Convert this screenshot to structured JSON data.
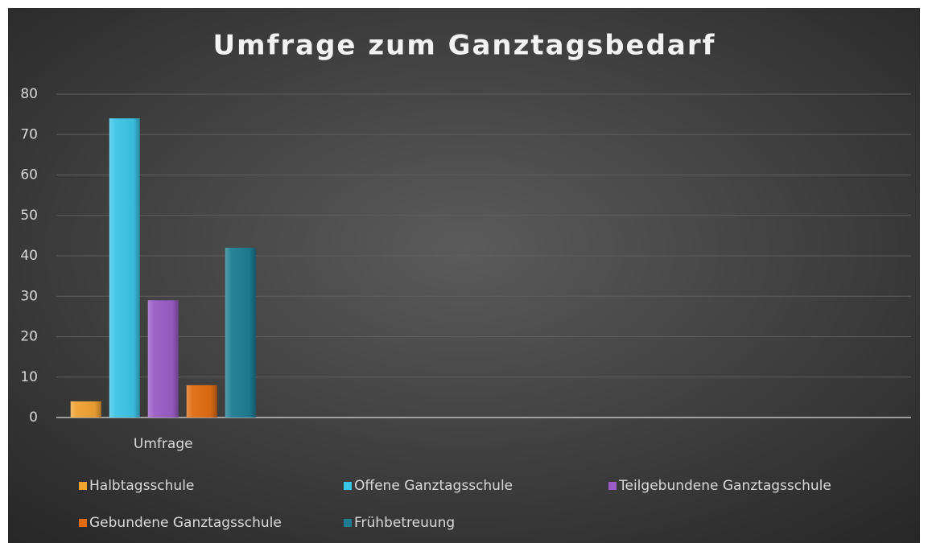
{
  "chart_data": {
    "type": "bar",
    "title": "Umfrage zum Ganztagsbedarf",
    "categories": [
      "Umfrage",
      null,
      null,
      null
    ],
    "series": [
      {
        "name": "Halbtagsschule",
        "color": "#f0a232",
        "values": [
          4,
          null,
          null,
          null
        ]
      },
      {
        "name": "Offene Ganztagsschule",
        "color": "#3cc4e6",
        "values": [
          74,
          null,
          null,
          null
        ]
      },
      {
        "name": "Teilgebundene Ganztagsschule",
        "color": "#9a5cc6",
        "values": [
          29,
          null,
          null,
          null
        ]
      },
      {
        "name": "Gebundene Ganztagsschule",
        "color": "#e06c12",
        "values": [
          8,
          null,
          null,
          null
        ]
      },
      {
        "name": "Frühbetreuung",
        "color": "#1e7d93",
        "values": [
          42,
          null,
          null,
          null
        ]
      }
    ],
    "ylim": [
      0,
      80
    ],
    "yticks": [
      0,
      10,
      20,
      30,
      40,
      50,
      60,
      70,
      80
    ],
    "grid": true,
    "legend": "bottom"
  }
}
